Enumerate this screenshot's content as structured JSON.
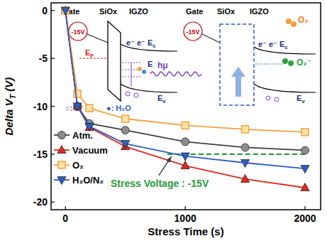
{
  "chart_data": {
    "type": "line",
    "x_label": "Stress Time (s)",
    "y_label": {
      "text": "Delta V",
      "sub": "T",
      "tail": " (V)"
    },
    "x": [
      0,
      100,
      200,
      500,
      1000,
      1500,
      2000
    ],
    "series": [
      {
        "name": "Atm.",
        "color": "#8c8c8c",
        "marker": "circle",
        "values": [
          0,
          -10,
          -11.8,
          -12.5,
          -13.7,
          -14.3,
          -14.6
        ]
      },
      {
        "name": "Vacuum",
        "color": "#e0281e",
        "marker": "triangle",
        "values": [
          0,
          -10,
          -12.2,
          -14.2,
          -16.2,
          -17.6,
          -18.5
        ]
      },
      {
        "name": "O₂",
        "color": "#f5a040",
        "marker": "square",
        "values": [
          0,
          -8.7,
          -10.2,
          -11.3,
          -12.0,
          -12.4,
          -12.7
        ]
      },
      {
        "name": "H₂O/N₂",
        "color": "#2f5fc0",
        "marker": "triangle_down",
        "values": [
          0,
          -10,
          -12.1,
          -13.9,
          -15.2,
          -15.9,
          -16.5
        ]
      }
    ],
    "xlim": [
      -120,
      2130
    ],
    "ylim": [
      -20.8,
      0.8
    ],
    "xticks": [
      0,
      1000,
      2000
    ],
    "yticks": [
      0,
      -5,
      -10,
      -15,
      -20
    ],
    "legend": "lower left",
    "grid": false,
    "reference_line": {
      "label": "Stress Voltage : -15V",
      "y": -15,
      "x": [
        850,
        2000
      ],
      "color": "#2a9a3a",
      "line_style": "dashed"
    },
    "annotations": [
      {
        "text": "Gate"
      },
      {
        "text": "SiOx"
      },
      {
        "text": "IGZO"
      },
      {
        "text": "Gate"
      },
      {
        "text": "SiOx"
      },
      {
        "text": "IGZO"
      },
      {
        "text": "-15V"
      },
      {
        "text": "-15V"
      },
      {
        "text": "E",
        "sub": "F"
      },
      {
        "text": "e⁻ e⁻ E",
        "sub": "c"
      },
      {
        "text": "E"
      },
      {
        "text": "E",
        "sub": "v"
      },
      {
        "text": "hμ"
      },
      {
        "text": "○: h⁺"
      },
      {
        "text": "●: H₂O"
      },
      {
        "text": "e⁻ e⁻ E",
        "sub": "c"
      },
      {
        "text": "O₂"
      },
      {
        "text": "O₂⁻"
      },
      {
        "text": "E",
        "sub": "v"
      }
    ]
  }
}
